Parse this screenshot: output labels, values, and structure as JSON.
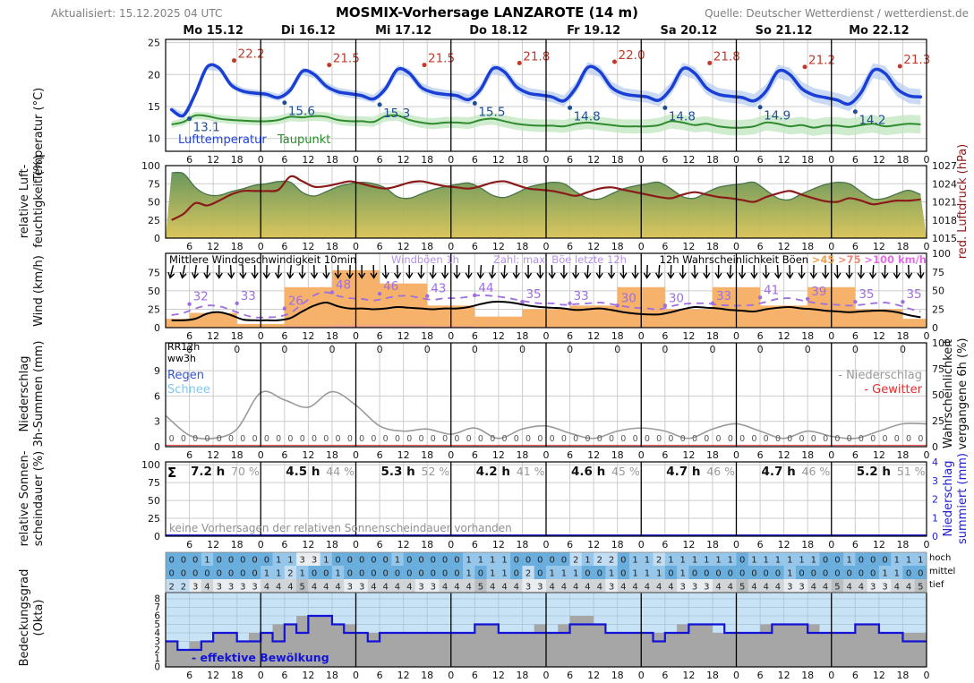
{
  "header": {
    "updated": "Aktualisiert: 15.12.2025 04 UTC",
    "title": "MOSMIX-Vorhersage LANZAROTE (14 m)",
    "source": "Quelle: Deutscher Wetterdienst / wetterdienst.de"
  },
  "labels": {
    "legend_temp_air": "Lufttemperatur",
    "legend_temp_dew": "Taupunkt",
    "wind_mean": "Mittlere Windgeschwindigkeit 10min",
    "wind_gust": "Windböen 1h",
    "wind_num": "Zahl: max. Böe letzte 12h",
    "wind_prob": "12h Wahrscheinlichkeit Böen",
    "wind_p45": ">45",
    "wind_p75": ">75",
    "wind_p100": ">100 km/h",
    "rr12h": "RR12h",
    "ww3h": "ww3h",
    "regen": "Regen",
    "schnee": "Schnee",
    "precip_legend": "- Niederschlag",
    "gewitter_legend": "- Gewitter",
    "sigma": "Σ",
    "sun_note": "keine Vorhersagen der relativen Sonnenscheindauer vorhanden",
    "cloud_legend": "- effektive Bewölkung",
    "row_hoch": "hoch",
    "row_mittel": "mittel",
    "row_tief": "tief",
    "axis_temp": "Temperatur (°C)",
    "axis_hum1": "relative Luft-",
    "axis_hum2": "feuchtigkeit (%)",
    "axis_wind": "Wind (km/h)",
    "axis_precip1": "Niederschlag",
    "axis_precip2": "3h-Summen (mm)",
    "axis_sun1": "relative Sonnen-",
    "axis_sun2": "scheindauer (%)",
    "axis_cloud1": "Bedeckungsgrad",
    "axis_cloud2": "(Okta)",
    "axis_pressure": "red. Luftdruck (hPa)",
    "axis_prob1": "Wahrscheinlichkeit",
    "axis_prob2": "vergangene 6h (%)",
    "axis_psum1": "Niederschlag",
    "axis_psum2": "summiert (mm)"
  },
  "xticks": [
    "6",
    "12",
    "18",
    "0"
  ],
  "days": [
    {
      "label": "Mo 15.12",
      "tmax": "22.2",
      "tmin": "13.1",
      "sun": "7.2 h",
      "sun_pct": "70 %"
    },
    {
      "label": "Di 16.12",
      "tmax": "21.5",
      "tmin": "15.6",
      "sun": "4.5 h",
      "sun_pct": "44 %"
    },
    {
      "label": "Mi 17.12",
      "tmax": "21.5",
      "tmin": "15.3",
      "sun": "5.3 h",
      "sun_pct": "52 %"
    },
    {
      "label": "Do 18.12",
      "tmax": "21.8",
      "tmin": "15.5",
      "sun": "4.2 h",
      "sun_pct": "41 %"
    },
    {
      "label": "Fr 19.12",
      "tmax": "22.0",
      "tmin": "14.8",
      "sun": "4.6 h",
      "sun_pct": "45 %"
    },
    {
      "label": "Sa 20.12",
      "tmax": "21.8",
      "tmin": "14.8",
      "sun": "4.7 h",
      "sun_pct": "46 %"
    },
    {
      "label": "So 21.12",
      "tmax": "21.2",
      "tmin": "14.9",
      "sun": "4.7 h",
      "sun_pct": "46 %"
    },
    {
      "label": "Mo 22.12",
      "tmax": "21.3",
      "tmin": "14.2",
      "sun": "5.2 h",
      "sun_pct": "51 %"
    }
  ],
  "colors": {
    "temp": "#1a3fd6",
    "temp_band": "#b9cdf0",
    "dew": "#2e8b2e",
    "dew_band": "#bfe6bf",
    "tmax": "#c0392b",
    "tmin": "#1f4e96",
    "hum_top": "#639355",
    "hum_bottom": "#d8c355",
    "hum_edge": "#49734a",
    "pressure": "#8b1a1a",
    "wind_mean": "#000000",
    "wind_gust": "#9e6fe0",
    "bar45": "#f6b26b",
    "bar75": "#f2a09a",
    "bar100": "#e36ee3",
    "precip_prob": "#9a9a9a",
    "gewitter": "#e03030",
    "rain": "#3355cc",
    "snow": "#7ec8f0",
    "sun_axis": "#2222cc",
    "cloud_bg": "#c8e2f6",
    "cloud_bar": "#a6a6a6",
    "cloud_line": "#1313d6",
    "grid": "#cccccc",
    "frame": "#000000",
    "okta": {
      "0": "#6aaede",
      "1": "#96c6e9",
      "2": "#c3ddf2",
      "3": "#e9edf0",
      "4": "#d2d5d8",
      "5": "#babec1",
      "6": "#a2a6a9",
      "7": "#8a8e91",
      "8": "#727679"
    }
  },
  "chart_data": [
    {
      "type": "line",
      "name": "temperature",
      "ylabel": "Temperatur (°C)",
      "ylim": [
        8,
        25.5
      ],
      "yticks": [
        10,
        15,
        20,
        25
      ],
      "x_step_hours": 3,
      "series": [
        {
          "name": "Lufttemperatur",
          "values": [
            14.5,
            13.6,
            17.0,
            21.2,
            21.0,
            18.4,
            17.4,
            17.1,
            16.9,
            16.4,
            17.6,
            20.5,
            20.0,
            18.2,
            17.3,
            17.0,
            16.7,
            16.2,
            17.8,
            20.8,
            20.2,
            18.0,
            17.2,
            16.9,
            16.7,
            16.1,
            17.7,
            20.9,
            20.4,
            18.1,
            17.1,
            16.8,
            16.5,
            15.9,
            17.9,
            21.1,
            20.5,
            18.0,
            17.0,
            16.7,
            16.5,
            16.0,
            17.8,
            20.9,
            20.2,
            17.9,
            16.9,
            16.6,
            16.4,
            15.9,
            17.4,
            20.5,
            20.0,
            17.8,
            16.8,
            16.4,
            16.0,
            15.4,
            17.2,
            20.6,
            20.2,
            17.8,
            16.7,
            16.5
          ]
        },
        {
          "name": "Taupunkt",
          "values": [
            12.2,
            12.6,
            13.6,
            13.5,
            13.1,
            12.9,
            12.8,
            12.7,
            12.7,
            12.9,
            13.4,
            13.3,
            13.5,
            13.4,
            12.9,
            12.7,
            12.7,
            12.6,
            13.5,
            13.6,
            12.9,
            12.5,
            12.3,
            12.5,
            12.5,
            12.4,
            12.9,
            13.1,
            12.7,
            12.3,
            12.1,
            12.0,
            12.0,
            11.9,
            12.3,
            12.5,
            12.3,
            12.1,
            11.9,
            11.9,
            11.9,
            12.1,
            12.7,
            12.5,
            12.1,
            12.3,
            11.9,
            11.7,
            11.7,
            11.9,
            12.5,
            12.3,
            11.9,
            12.1,
            11.7,
            12.0,
            12.0,
            11.8,
            12.1,
            12.3,
            11.9,
            12.1,
            12.3,
            12.2
          ]
        }
      ],
      "daily_max": [
        22.2,
        21.5,
        21.5,
        21.8,
        22.0,
        21.8,
        21.2,
        21.3
      ],
      "daily_min": [
        13.1,
        15.6,
        15.3,
        15.5,
        14.8,
        14.8,
        14.9,
        14.2
      ]
    },
    {
      "type": "area",
      "name": "humidity_pressure",
      "ylabel": "relative Luftfeuchtigkeit (%)",
      "ylim": [
        0,
        100
      ],
      "yticks": [
        0,
        25,
        50,
        75,
        100
      ],
      "humidity": [
        90,
        89,
        70,
        60,
        59,
        64,
        68,
        73,
        75,
        78,
        77,
        63,
        58,
        64,
        71,
        75,
        77,
        75,
        69,
        57,
        55,
        61,
        67,
        71,
        74,
        76,
        69,
        59,
        56,
        62,
        70,
        74,
        77,
        75,
        64,
        55,
        54,
        61,
        68,
        72,
        75,
        77,
        68,
        57,
        55,
        63,
        70,
        73,
        75,
        77,
        66,
        55,
        53,
        61,
        68,
        74,
        77,
        75,
        64,
        54,
        55,
        61,
        66,
        60
      ],
      "pressure": {
        "ylabel": "red. Luftdruck (hPa)",
        "ylim": [
          1015,
          1027
        ],
        "yticks": [
          1015,
          1018,
          1021,
          1024,
          1027
        ],
        "values": [
          1018.0,
          1019.0,
          1020.8,
          1020.4,
          1021.2,
          1022.2,
          1022.8,
          1022.8,
          1022.8,
          1023.0,
          1025.2,
          1024.4,
          1023.5,
          1023.6,
          1024.0,
          1024.4,
          1024.0,
          1023.5,
          1023.2,
          1023.6,
          1024.2,
          1024.4,
          1024.0,
          1023.6,
          1023.4,
          1023.2,
          1023.6,
          1024.2,
          1024.4,
          1023.8,
          1023.2,
          1023.0,
          1022.8,
          1022.4,
          1022.0,
          1022.6,
          1023.2,
          1023.4,
          1023.0,
          1022.6,
          1022.2,
          1021.8,
          1021.6,
          1022.2,
          1022.6,
          1022.2,
          1021.8,
          1021.6,
          1021.3,
          1021.0,
          1021.8,
          1022.4,
          1022.8,
          1022.2,
          1021.6,
          1021.1,
          1021.0,
          1021.6,
          1021.2,
          1020.6,
          1020.9,
          1021.2,
          1021.2,
          1021.4
        ]
      }
    },
    {
      "type": "bar+line",
      "name": "wind",
      "ylabel": "Wind (km/h)",
      "ylim": [
        0,
        101
      ],
      "yticks": [
        0,
        25,
        50,
        75
      ],
      "right_ylim": [
        0,
        100
      ],
      "right_yticks": [
        0,
        25,
        50,
        75,
        100
      ],
      "mean": [
        10,
        10,
        12,
        19,
        21,
        17,
        11,
        10,
        10,
        10,
        13,
        22,
        30,
        34,
        29,
        26,
        26,
        25,
        26,
        28,
        27,
        26,
        25,
        26,
        26,
        28,
        32,
        35,
        35,
        33,
        30,
        28,
        27,
        26,
        24,
        25,
        26,
        24,
        21,
        19,
        18,
        18,
        21,
        25,
        28,
        27,
        26,
        24,
        23,
        22,
        25,
        27,
        28,
        26,
        25,
        23,
        22,
        21,
        22,
        23,
        23,
        21,
        17,
        14
      ],
      "gust": [
        17,
        20,
        26,
        30,
        29,
        24,
        18,
        14,
        14,
        15,
        20,
        32,
        44,
        48,
        43,
        40,
        39,
        37,
        40,
        43,
        43,
        40,
        38,
        40,
        40,
        42,
        44,
        43,
        41,
        38,
        35,
        33,
        33,
        31,
        32,
        33,
        34,
        32,
        29,
        27,
        26,
        25,
        29,
        32,
        33,
        33,
        31,
        30,
        30,
        31,
        35,
        39,
        40,
        37,
        34,
        32,
        31,
        30,
        31,
        33,
        34,
        31,
        26,
        22
      ],
      "gust_labels": [
        "32",
        "33",
        "26",
        "48",
        "46",
        "43",
        "44",
        "35",
        "33",
        "30",
        "30",
        "33",
        "41",
        "39",
        "35",
        "35"
      ],
      "prob45_blocks": [
        12,
        20,
        5,
        55,
        78,
        60,
        30,
        15,
        25,
        30,
        55,
        25,
        55,
        30,
        55,
        25,
        12
      ],
      "prob75_blocks": [
        0,
        0,
        0,
        2,
        3,
        3,
        2,
        0,
        0,
        0,
        0,
        0,
        0,
        0,
        0,
        0,
        0
      ],
      "arrow_dirs": [
        14,
        12,
        8,
        4,
        0,
        -4,
        -2,
        0,
        2,
        4,
        6,
        2,
        -2,
        -4,
        0,
        2,
        0,
        -2,
        -4,
        -2,
        0,
        2,
        4,
        2,
        0,
        2,
        4,
        6,
        4,
        2,
        0,
        -2,
        -2,
        0,
        2,
        4,
        2,
        0,
        -2,
        0,
        2,
        4,
        2,
        0,
        -2,
        0,
        2,
        4,
        2,
        0,
        -2,
        -4,
        -2,
        0,
        2,
        0,
        -2,
        0,
        2,
        4,
        2,
        0,
        -2,
        -4
      ]
    },
    {
      "type": "line",
      "name": "precipitation",
      "ylabel": "Niederschlag 3h-Summen (mm)",
      "mm_ylim": [
        0,
        12.3
      ],
      "mm_yticks": [
        0,
        3,
        6,
        9
      ],
      "prob_ylabel": "Wahrscheinlichkeit vergangene 6h (%)",
      "prob_ylim": [
        0,
        100
      ],
      "prob_yticks": [
        0,
        25,
        50,
        75,
        100
      ],
      "rr12h_values": [
        "0",
        "0",
        "0",
        "0",
        "0",
        "0",
        "0",
        "0",
        "0",
        "0",
        "0",
        "0",
        "0",
        "0",
        "0",
        "0"
      ],
      "ww3h_value": "0",
      "ww3h_count": 64,
      "prob_6h": [
        30,
        11,
        8,
        17,
        52,
        45,
        38,
        53,
        40,
        20,
        15,
        17,
        12,
        18,
        8,
        17,
        20,
        13,
        8,
        15,
        18,
        15,
        8,
        17,
        22,
        15,
        8,
        15,
        10,
        8,
        15,
        22,
        22
      ],
      "gewitter_prob": 0
    },
    {
      "type": "line",
      "name": "sunshine",
      "ylabel": "relative Sonnenscheindauer (%)",
      "ylim": [
        0,
        104
      ],
      "yticks": [
        0,
        25,
        50,
        75,
        100
      ],
      "right_ylabel": "Niederschlag summiert (mm)",
      "right_ylim": [
        0,
        4
      ],
      "right_yticks": [
        0,
        1,
        2,
        3,
        4
      ],
      "cumulative_precip": 0
    },
    {
      "type": "cells+steps",
      "name": "clouds",
      "ylabel": "Bedeckungsgrad (Okta)",
      "ylim": [
        0,
        8.7
      ],
      "yticks": [
        0,
        1,
        2,
        3,
        4,
        5,
        6,
        7,
        8
      ],
      "rows": {
        "hoch": [
          0,
          0,
          0,
          1,
          0,
          0,
          0,
          0,
          0,
          1,
          1,
          3,
          3,
          1,
          0,
          0,
          0,
          0,
          0,
          1,
          0,
          0,
          0,
          0,
          0,
          1,
          1,
          1,
          1,
          0,
          0,
          0,
          0,
          0,
          2,
          1,
          2,
          2,
          0,
          1,
          1,
          2,
          1,
          1,
          1,
          1,
          1,
          1,
          0,
          1,
          1,
          1,
          1,
          1,
          1,
          0,
          0,
          1,
          0,
          0,
          0,
          1,
          1,
          1
        ],
        "mittel": [
          0,
          0,
          0,
          0,
          0,
          0,
          0,
          0,
          1,
          1,
          2,
          1,
          0,
          0,
          1,
          0,
          0,
          0,
          0,
          0,
          0,
          0,
          0,
          0,
          0,
          1,
          0,
          1,
          1,
          0,
          2,
          0,
          1,
          1,
          1,
          0,
          0,
          1,
          0,
          1,
          1,
          1,
          0,
          1,
          0,
          0,
          0,
          0,
          0,
          0,
          0,
          0,
          1,
          0,
          0,
          0,
          0,
          0,
          0,
          0,
          1,
          1,
          0,
          0
        ],
        "tief": [
          2,
          2,
          3,
          4,
          3,
          3,
          3,
          3,
          4,
          4,
          4,
          5,
          4,
          4,
          4,
          3,
          3,
          4,
          4,
          4,
          4,
          3,
          3,
          4,
          4,
          4,
          5,
          4,
          4,
          4,
          3,
          3,
          4,
          4,
          4,
          4,
          4,
          3,
          4,
          4,
          4,
          4,
          4,
          3,
          3,
          3,
          4,
          4,
          5,
          4,
          4,
          4,
          3,
          3,
          4,
          4,
          5,
          4,
          4,
          3,
          3,
          4,
          4,
          5
        ]
      },
      "total": [
        3,
        2,
        3,
        3,
        4,
        4,
        3,
        4,
        4,
        5,
        5,
        6,
        6,
        6,
        5,
        5,
        4,
        4,
        4,
        4,
        4,
        4,
        4,
        4,
        4,
        4,
        5,
        5,
        4,
        4,
        4,
        5,
        4,
        5,
        6,
        6,
        5,
        4,
        4,
        4,
        4,
        4,
        4,
        5,
        5,
        5,
        4,
        4,
        4,
        4,
        5,
        5,
        5,
        5,
        5,
        4,
        4,
        4,
        5,
        5,
        4,
        4,
        4,
        4
      ],
      "effective": [
        3,
        2,
        2,
        3,
        4,
        4,
        3,
        3,
        4,
        3,
        5,
        4,
        6,
        6,
        5,
        4,
        4,
        3,
        4,
        4,
        4,
        4,
        4,
        4,
        4,
        4,
        5,
        5,
        4,
        4,
        4,
        4,
        4,
        4,
        5,
        5,
        5,
        4,
        4,
        4,
        4,
        3,
        4,
        4,
        5,
        5,
        5,
        4,
        4,
        4,
        4,
        5,
        5,
        5,
        4,
        4,
        4,
        4,
        5,
        5,
        4,
        4,
        3,
        3
      ]
    }
  ]
}
